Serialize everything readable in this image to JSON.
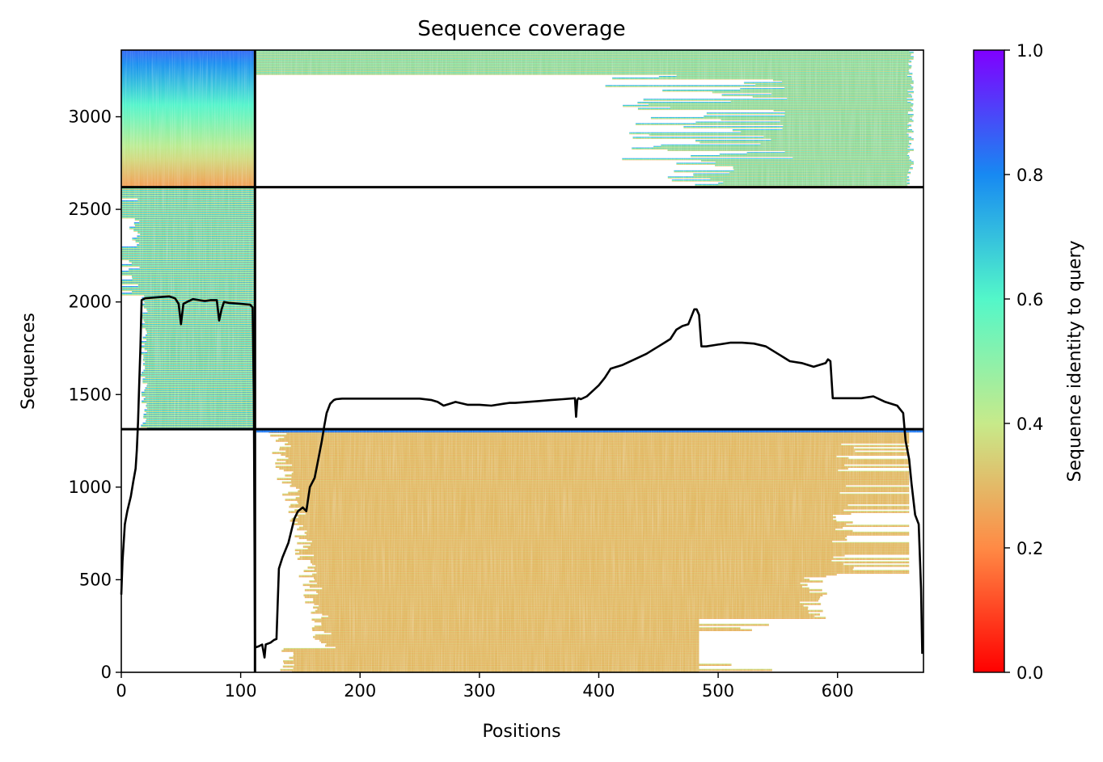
{
  "chart_data": {
    "type": "heatmap",
    "title": "Sequence coverage",
    "xlabel": "Positions",
    "ylabel": "Sequences",
    "xlim": [
      0,
      672
    ],
    "ylim": [
      0,
      3360
    ],
    "xticks": [
      0,
      100,
      200,
      300,
      400,
      500,
      600
    ],
    "yticks": [
      0,
      500,
      1000,
      1500,
      2000,
      2500,
      3000
    ],
    "grid": false,
    "colorbar": {
      "label": "Sequence identity to query",
      "range": [
        0.0,
        1.0
      ],
      "ticks": [
        "0.0",
        "0.2",
        "0.4",
        "0.6",
        "0.8",
        "1.0"
      ],
      "colormap": "rainbow_r",
      "stops": [
        "#ff0000",
        "#ff8a45",
        "#c7ea8a",
        "#53f7c9",
        "#1789f2",
        "#8000ff"
      ]
    },
    "separators": {
      "horizontal": [
        1313,
        2620
      ],
      "vertical": [
        112
      ]
    },
    "blocks": [
      {
        "name": "block-lower",
        "y_range": [
          0,
          1313
        ],
        "segments": [
          {
            "x_range": [
              0,
              112
            ],
            "coverage": "none"
          },
          {
            "x_range": [
              112,
              672
            ],
            "identity_bottom": 0.24,
            "identity_top": 0.4,
            "coverage": "positions ~130-660, core ~175-485 in lowest rows"
          }
        ]
      },
      {
        "name": "block-middle",
        "y_range": [
          1313,
          2620
        ],
        "segments": [
          {
            "x_range": [
              0,
              112
            ],
            "identity_bottom": 0.25,
            "identity_top": 0.9,
            "coverage": "positions ~15-112"
          },
          {
            "x_range": [
              112,
              672
            ],
            "coverage": "none"
          }
        ]
      },
      {
        "name": "block-upper",
        "y_range": [
          2620,
          3360
        ],
        "segments": [
          {
            "x_range": [
              0,
              112
            ],
            "identity_bottom": 0.24,
            "identity_top": 0.85
          },
          {
            "x_range": [
              112,
              672
            ],
            "identity_bottom": 0.24,
            "identity_top": 0.85,
            "coverage": "right part ~390-665 for lower rows, full width for top rows"
          }
        ]
      }
    ],
    "coverage_line": {
      "name": "coverage",
      "color": "#000000",
      "x": [
        0,
        1,
        3,
        5,
        8,
        10,
        12,
        13,
        14,
        15,
        16,
        17,
        20,
        30,
        40,
        45,
        48,
        50,
        52,
        55,
        60,
        65,
        70,
        75,
        80,
        82,
        84,
        86,
        90,
        100,
        108,
        110,
        111,
        112,
        112.5,
        115,
        118,
        120,
        121,
        125,
        128,
        130,
        132,
        135,
        140,
        145,
        148,
        152,
        155,
        158,
        162,
        165,
        168,
        170,
        172,
        175,
        178,
        180,
        185,
        200,
        250,
        260,
        265,
        270,
        275,
        280,
        290,
        300,
        310,
        320,
        325,
        330,
        340,
        350,
        360,
        370,
        380,
        381,
        382,
        383,
        385,
        390,
        395,
        400,
        405,
        410,
        420,
        430,
        440,
        445,
        450,
        455,
        460,
        465,
        470,
        475,
        480,
        482,
        484,
        486,
        490,
        500,
        510,
        520,
        530,
        540,
        550,
        555,
        560,
        570,
        580,
        590,
        592,
        594,
        596,
        600,
        610,
        620,
        630,
        640,
        650,
        655,
        657,
        660,
        662,
        665,
        668,
        670,
        671
      ],
      "y": [
        420,
        600,
        800,
        870,
        950,
        1030,
        1100,
        1200,
        1350,
        1550,
        1750,
        2010,
        2020,
        2025,
        2030,
        2020,
        1990,
        1880,
        1990,
        2000,
        2015,
        2010,
        2005,
        2010,
        2010,
        1900,
        1960,
        2000,
        1995,
        1990,
        1985,
        1970,
        1500,
        140,
        135,
        140,
        150,
        80,
        150,
        160,
        175,
        180,
        560,
        620,
        700,
        830,
        870,
        890,
        870,
        1000,
        1050,
        1150,
        1250,
        1330,
        1400,
        1450,
        1470,
        1475,
        1478,
        1478,
        1478,
        1470,
        1460,
        1440,
        1450,
        1460,
        1445,
        1445,
        1440,
        1450,
        1455,
        1455,
        1460,
        1465,
        1470,
        1475,
        1480,
        1380,
        1470,
        1480,
        1475,
        1490,
        1520,
        1550,
        1590,
        1640,
        1660,
        1690,
        1720,
        1740,
        1760,
        1780,
        1800,
        1850,
        1870,
        1880,
        1960,
        1960,
        1930,
        1760,
        1760,
        1770,
        1780,
        1780,
        1775,
        1760,
        1720,
        1700,
        1680,
        1670,
        1650,
        1670,
        1690,
        1680,
        1480,
        1480,
        1480,
        1480,
        1490,
        1460,
        1440,
        1400,
        1250,
        1150,
        1020,
        850,
        800,
        450,
        100
      ]
    }
  }
}
